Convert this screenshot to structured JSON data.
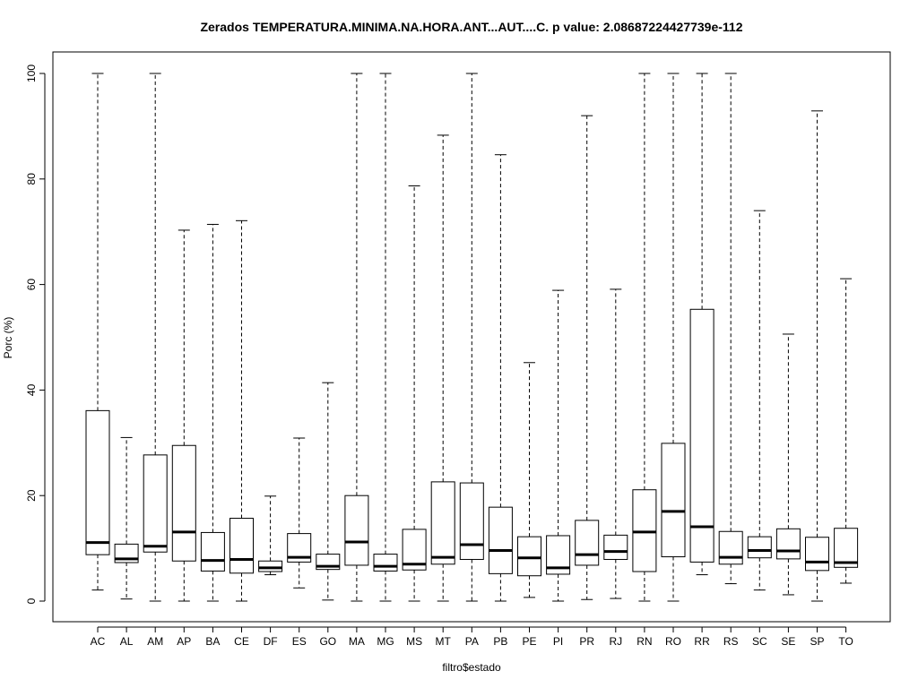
{
  "chart_data": {
    "type": "boxplot",
    "title": "Zerados TEMPERATURA.MINIMA.NA.HORA.ANT...AUT....C. p value: 2.08687224427739e-112",
    "xlabel": "filtro$estado",
    "ylabel": "Porc (%)",
    "ylim": [
      0,
      100
    ],
    "yticks": [
      0,
      20,
      40,
      60,
      80,
      100
    ],
    "grid": false,
    "categories": [
      "AC",
      "AL",
      "AM",
      "AP",
      "BA",
      "CE",
      "DF",
      "ES",
      "GO",
      "MA",
      "MG",
      "MS",
      "MT",
      "PA",
      "PB",
      "PE",
      "PI",
      "PR",
      "RJ",
      "RN",
      "RO",
      "RR",
      "RS",
      "SC",
      "SE",
      "SP",
      "TO"
    ],
    "boxes": [
      {
        "min": 2.1,
        "q1": 8.8,
        "median": 11.1,
        "q3": 36.1,
        "max": 100
      },
      {
        "min": 0.4,
        "q1": 7.3,
        "median": 8.0,
        "q3": 10.8,
        "max": 31.0
      },
      {
        "min": 0.0,
        "q1": 9.3,
        "median": 10.4,
        "q3": 27.7,
        "max": 100
      },
      {
        "min": 0.0,
        "q1": 7.6,
        "median": 13.1,
        "q3": 29.5,
        "max": 70.3
      },
      {
        "min": 0.0,
        "q1": 5.7,
        "median": 7.7,
        "q3": 13.0,
        "max": 71.4
      },
      {
        "min": 0.0,
        "q1": 5.3,
        "median": 7.9,
        "q3": 15.7,
        "max": 72.1
      },
      {
        "min": 5.0,
        "q1": 5.6,
        "median": 6.3,
        "q3": 7.6,
        "max": 19.9
      },
      {
        "min": 2.5,
        "q1": 7.4,
        "median": 8.3,
        "q3": 12.8,
        "max": 30.9
      },
      {
        "min": 0.2,
        "q1": 6.0,
        "median": 6.6,
        "q3": 8.9,
        "max": 41.4
      },
      {
        "min": 0.0,
        "q1": 6.8,
        "median": 11.2,
        "q3": 20.0,
        "max": 100
      },
      {
        "min": 0.0,
        "q1": 5.7,
        "median": 6.6,
        "q3": 8.9,
        "max": 100
      },
      {
        "min": 0.0,
        "q1": 5.9,
        "median": 7.0,
        "q3": 13.6,
        "max": 78.7
      },
      {
        "min": 0.0,
        "q1": 7.0,
        "median": 8.3,
        "q3": 22.6,
        "max": 88.3
      },
      {
        "min": 0.0,
        "q1": 7.9,
        "median": 10.7,
        "q3": 22.4,
        "max": 100
      },
      {
        "min": 0.0,
        "q1": 5.2,
        "median": 9.6,
        "q3": 17.8,
        "max": 84.6
      },
      {
        "min": 0.7,
        "q1": 4.8,
        "median": 8.2,
        "q3": 12.2,
        "max": 45.2
      },
      {
        "min": 0.0,
        "q1": 5.1,
        "median": 6.3,
        "q3": 12.4,
        "max": 58.9
      },
      {
        "min": 0.3,
        "q1": 6.8,
        "median": 8.8,
        "q3": 15.3,
        "max": 92.0
      },
      {
        "min": 0.5,
        "q1": 7.9,
        "median": 9.4,
        "q3": 12.5,
        "max": 59.1
      },
      {
        "min": 0.0,
        "q1": 5.6,
        "median": 13.1,
        "q3": 21.1,
        "max": 100
      },
      {
        "min": 0.0,
        "q1": 8.4,
        "median": 17.0,
        "q3": 29.9,
        "max": 100
      },
      {
        "min": 5.0,
        "q1": 7.4,
        "median": 14.1,
        "q3": 55.3,
        "max": 100
      },
      {
        "min": 3.3,
        "q1": 7.0,
        "median": 8.3,
        "q3": 13.2,
        "max": 100
      },
      {
        "min": 2.1,
        "q1": 8.2,
        "median": 9.6,
        "q3": 12.2,
        "max": 74.0
      },
      {
        "min": 1.2,
        "q1": 8.0,
        "median": 9.5,
        "q3": 13.7,
        "max": 50.6
      },
      {
        "min": 0.0,
        "q1": 5.8,
        "median": 7.4,
        "q3": 12.1,
        "max": 92.9
      },
      {
        "min": 3.4,
        "q1": 6.4,
        "median": 7.3,
        "q3": 13.8,
        "max": 61.1
      }
    ]
  }
}
